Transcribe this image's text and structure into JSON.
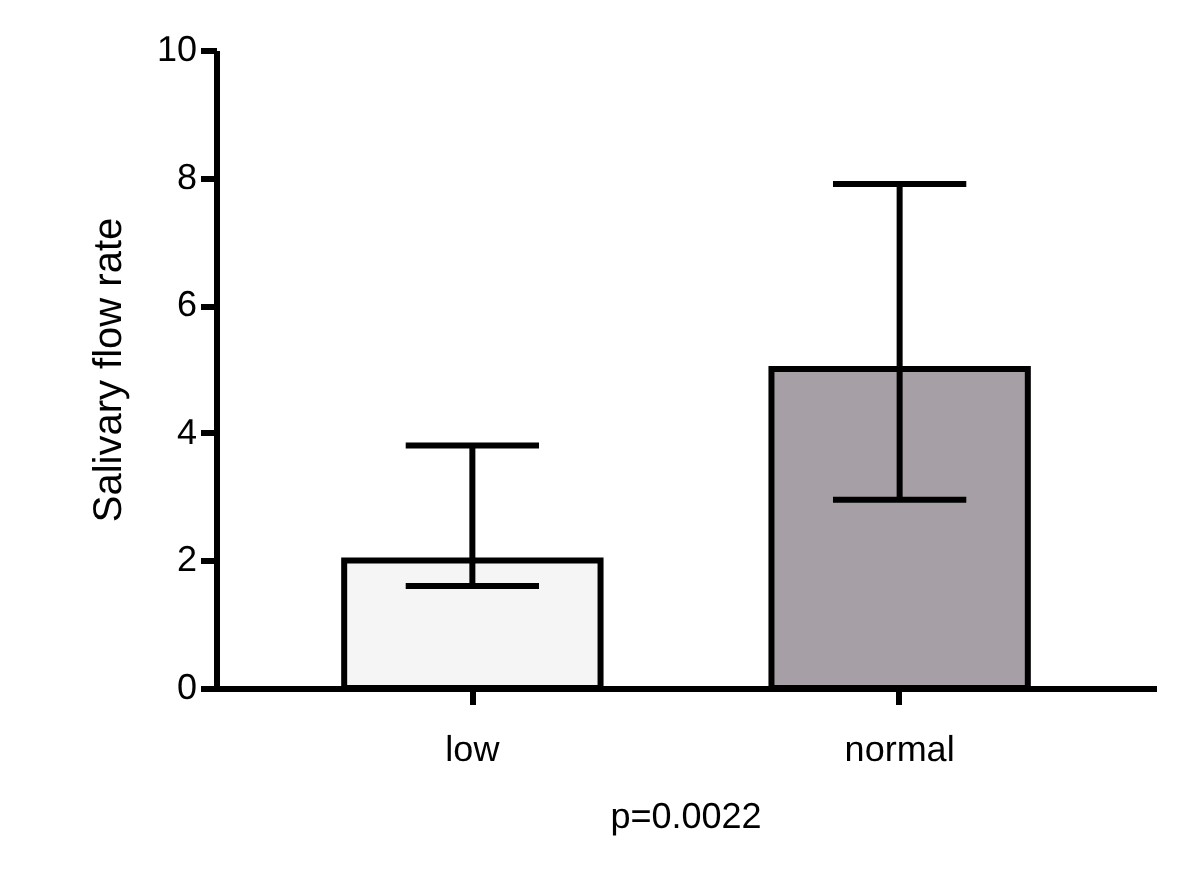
{
  "chart_data": {
    "type": "bar",
    "ylabel": "Salivary flow rate",
    "categories": [
      "low",
      "normal"
    ],
    "values": [
      2.0,
      5.0
    ],
    "colors": [
      "#f5f5f5",
      "#a6a0a6"
    ],
    "errors": [
      [
        1.6,
        3.8
      ],
      [
        2.95,
        7.9
      ]
    ],
    "ylim": [
      0,
      10
    ],
    "yticks": [
      0,
      2,
      4,
      6,
      8,
      10
    ],
    "grid": false,
    "annotations": [
      "p=0.0022"
    ]
  }
}
